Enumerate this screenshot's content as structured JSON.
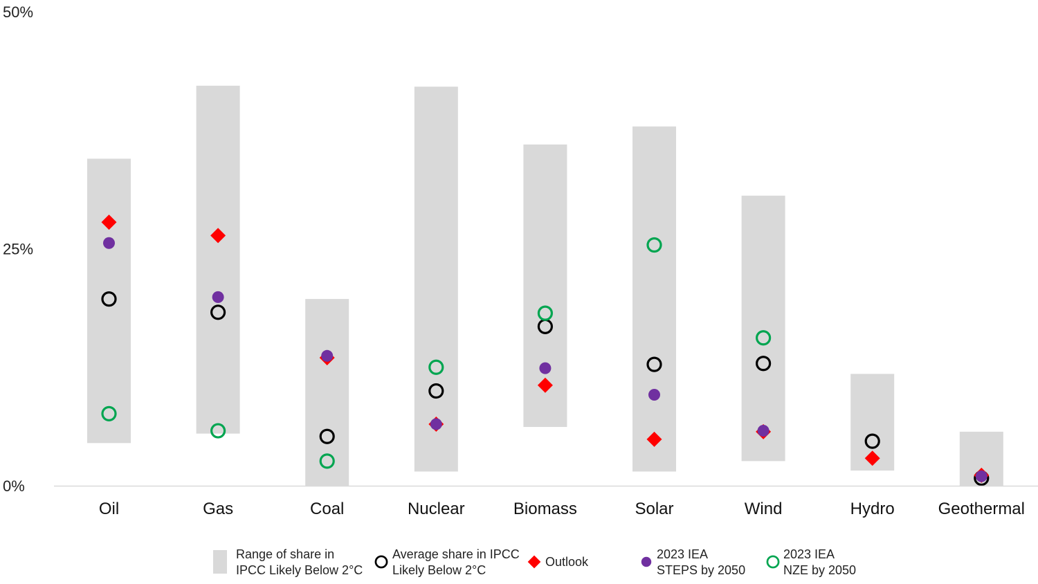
{
  "chart_data": {
    "type": "range-dot",
    "categories": [
      "Oil",
      "Gas",
      "Coal",
      "Nuclear",
      "Biomass",
      "Solar",
      "Wind",
      "Hydro",
      "Geothermal"
    ],
    "ylim": [
      0,
      50
    ],
    "yticks": [
      {
        "value": 0,
        "label": "0%"
      },
      {
        "value": 25,
        "label": "25%"
      },
      {
        "value": 50,
        "label": "50%"
      }
    ],
    "range": {
      "name": "Range of share in IPCC Likely Below 2°C",
      "low": [
        4.5,
        5.5,
        0.0,
        1.5,
        6.2,
        1.5,
        2.6,
        1.6,
        0.0
      ],
      "high": [
        34.5,
        42.2,
        19.7,
        42.1,
        36.0,
        37.9,
        30.6,
        11.8,
        5.7
      ]
    },
    "series": [
      {
        "name": "Average share in IPCC Likely Below 2°C",
        "marker": "ring",
        "color": "#000000",
        "values": [
          19.7,
          18.3,
          5.2,
          10.0,
          16.8,
          12.8,
          12.9,
          4.7,
          0.8
        ]
      },
      {
        "name": "Outlook",
        "marker": "diamond",
        "color": "#ff0000",
        "values": [
          27.8,
          26.4,
          13.5,
          6.5,
          10.6,
          4.9,
          5.7,
          2.9,
          1.1
        ]
      },
      {
        "name": "2023 IEA STEPS by 2050",
        "marker": "dot",
        "color": "#7030a0",
        "values": [
          25.6,
          19.9,
          13.7,
          6.5,
          12.4,
          9.6,
          5.8,
          null,
          1.0
        ]
      },
      {
        "name": "2023 IEA NZE by 2050",
        "marker": "ring",
        "color": "#00a550",
        "values": [
          7.6,
          5.8,
          2.6,
          12.5,
          18.2,
          25.4,
          15.6,
          null,
          null
        ]
      }
    ],
    "legend": [
      {
        "marker": "bar",
        "lines": [
          "Range of share in",
          "IPCC Likely Below 2°C"
        ]
      },
      {
        "marker": "ring-black",
        "lines": [
          "Average share in IPCC",
          "Likely Below 2°C"
        ]
      },
      {
        "marker": "diamond-red",
        "lines": [
          "Outlook"
        ]
      },
      {
        "marker": "dot-purple",
        "lines": [
          "2023 IEA",
          "STEPS by 2050"
        ]
      },
      {
        "marker": "ring-green",
        "lines": [
          "2023 IEA",
          "NZE by 2050"
        ]
      }
    ],
    "legend_position": "bottom"
  }
}
